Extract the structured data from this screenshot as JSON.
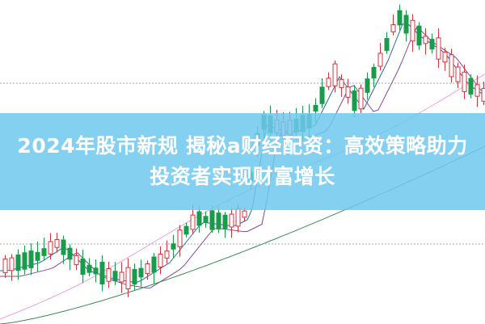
{
  "article": {
    "title": "2024年股市新规 揭秘a财经配资：高效策略助力投资者实现财富增长"
  },
  "colors": {
    "banner": "#6ec8ee",
    "candle_up": "#d0343c",
    "candle_down": "#1a9a4a",
    "ma_blue": "#2a6aa0",
    "ma_purple": "#8a4a9a",
    "ma_pink": "#e8a0e0",
    "ma_green": "#3a8a5a",
    "grid": "#9aa"
  }
}
